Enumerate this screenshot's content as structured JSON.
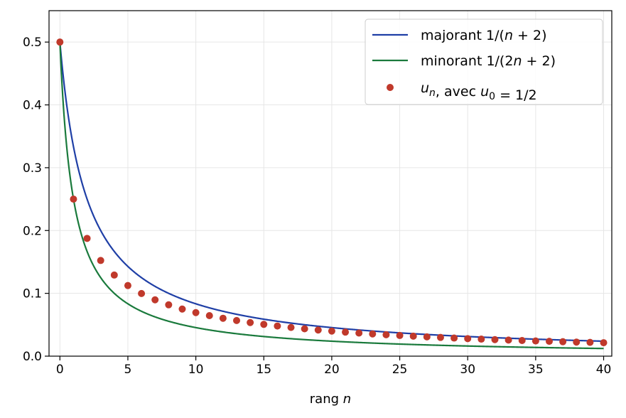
{
  "chart_data": {
    "type": "line",
    "title": "",
    "xlabel": {
      "prefix": "rang ",
      "var": "n"
    },
    "ylabel": "",
    "xlim": [
      -0.8,
      40.6
    ],
    "ylim": [
      0,
      0.55
    ],
    "xticks": [
      0,
      5,
      10,
      15,
      20,
      25,
      30,
      35,
      40
    ],
    "yticks": [
      0.0,
      0.1,
      0.2,
      0.3,
      0.4,
      0.5
    ],
    "xtick_labels": [
      "0",
      "5",
      "10",
      "15",
      "20",
      "25",
      "30",
      "35",
      "40"
    ],
    "ytick_labels": [
      "0.0",
      "0.1",
      "0.2",
      "0.3",
      "0.4",
      "0.5"
    ],
    "grid": true,
    "legend_position": "top-right",
    "colors": {
      "majorant": "#1f3fa6",
      "minorant": "#1a7a3c",
      "points": "#c0392b",
      "grid": "#e6e6e6"
    },
    "series": [
      {
        "key": "majorant",
        "type": "line",
        "name": "majorant 1/(n + 2)",
        "name_parts": [
          {
            "t": "majorant 1/(",
            "i": false
          },
          {
            "t": "n",
            "i": true
          },
          {
            "t": " + 2)",
            "i": false
          }
        ],
        "formula": "1/(n+2)"
      },
      {
        "key": "minorant",
        "type": "line",
        "name": "minorant 1/(2n + 2)",
        "name_parts": [
          {
            "t": "minorant 1/(2",
            "i": false
          },
          {
            "t": "n",
            "i": true
          },
          {
            "t": " + 2)",
            "i": false
          }
        ],
        "formula": "1/(2n+2)"
      },
      {
        "key": "points",
        "type": "scatter",
        "name": "u_n, avec u_0 = 1/2",
        "name_parts": [
          {
            "t": "u",
            "i": true
          },
          {
            "t": "n",
            "i": true,
            "sub": true
          },
          {
            "t": ", avec ",
            "i": false
          },
          {
            "t": "u",
            "i": true
          },
          {
            "t": "0",
            "i": false,
            "sub": true
          },
          {
            "t": " = 1/2",
            "i": false
          }
        ],
        "x": [
          0,
          1,
          2,
          3,
          4,
          5,
          6,
          7,
          8,
          9,
          10,
          11,
          12,
          13,
          14,
          15,
          16,
          17,
          18,
          19,
          20,
          21,
          22,
          23,
          24,
          25,
          26,
          27,
          28,
          29,
          30,
          31,
          32,
          33,
          34,
          35,
          36,
          37,
          38,
          39,
          40
        ],
        "y": [
          0.5,
          0.25,
          0.1875,
          0.1523,
          0.1291,
          0.1124,
          0.0997,
          0.0897,
          0.0817,
          0.075,
          0.0693,
          0.0645,
          0.0603,
          0.0567,
          0.0535,
          0.0506,
          0.048,
          0.0457,
          0.0436,
          0.0416,
          0.0399,
          0.0383,
          0.0368,
          0.0354,
          0.0341,
          0.0329,
          0.0318,
          0.0307,
          0.0298,
          0.0288,
          0.0279,
          0.0271,
          0.0263,
          0.0256,
          0.0249,
          0.0242,
          0.0236,
          0.023,
          0.0224,
          0.0219,
          0.0214
        ]
      }
    ]
  }
}
